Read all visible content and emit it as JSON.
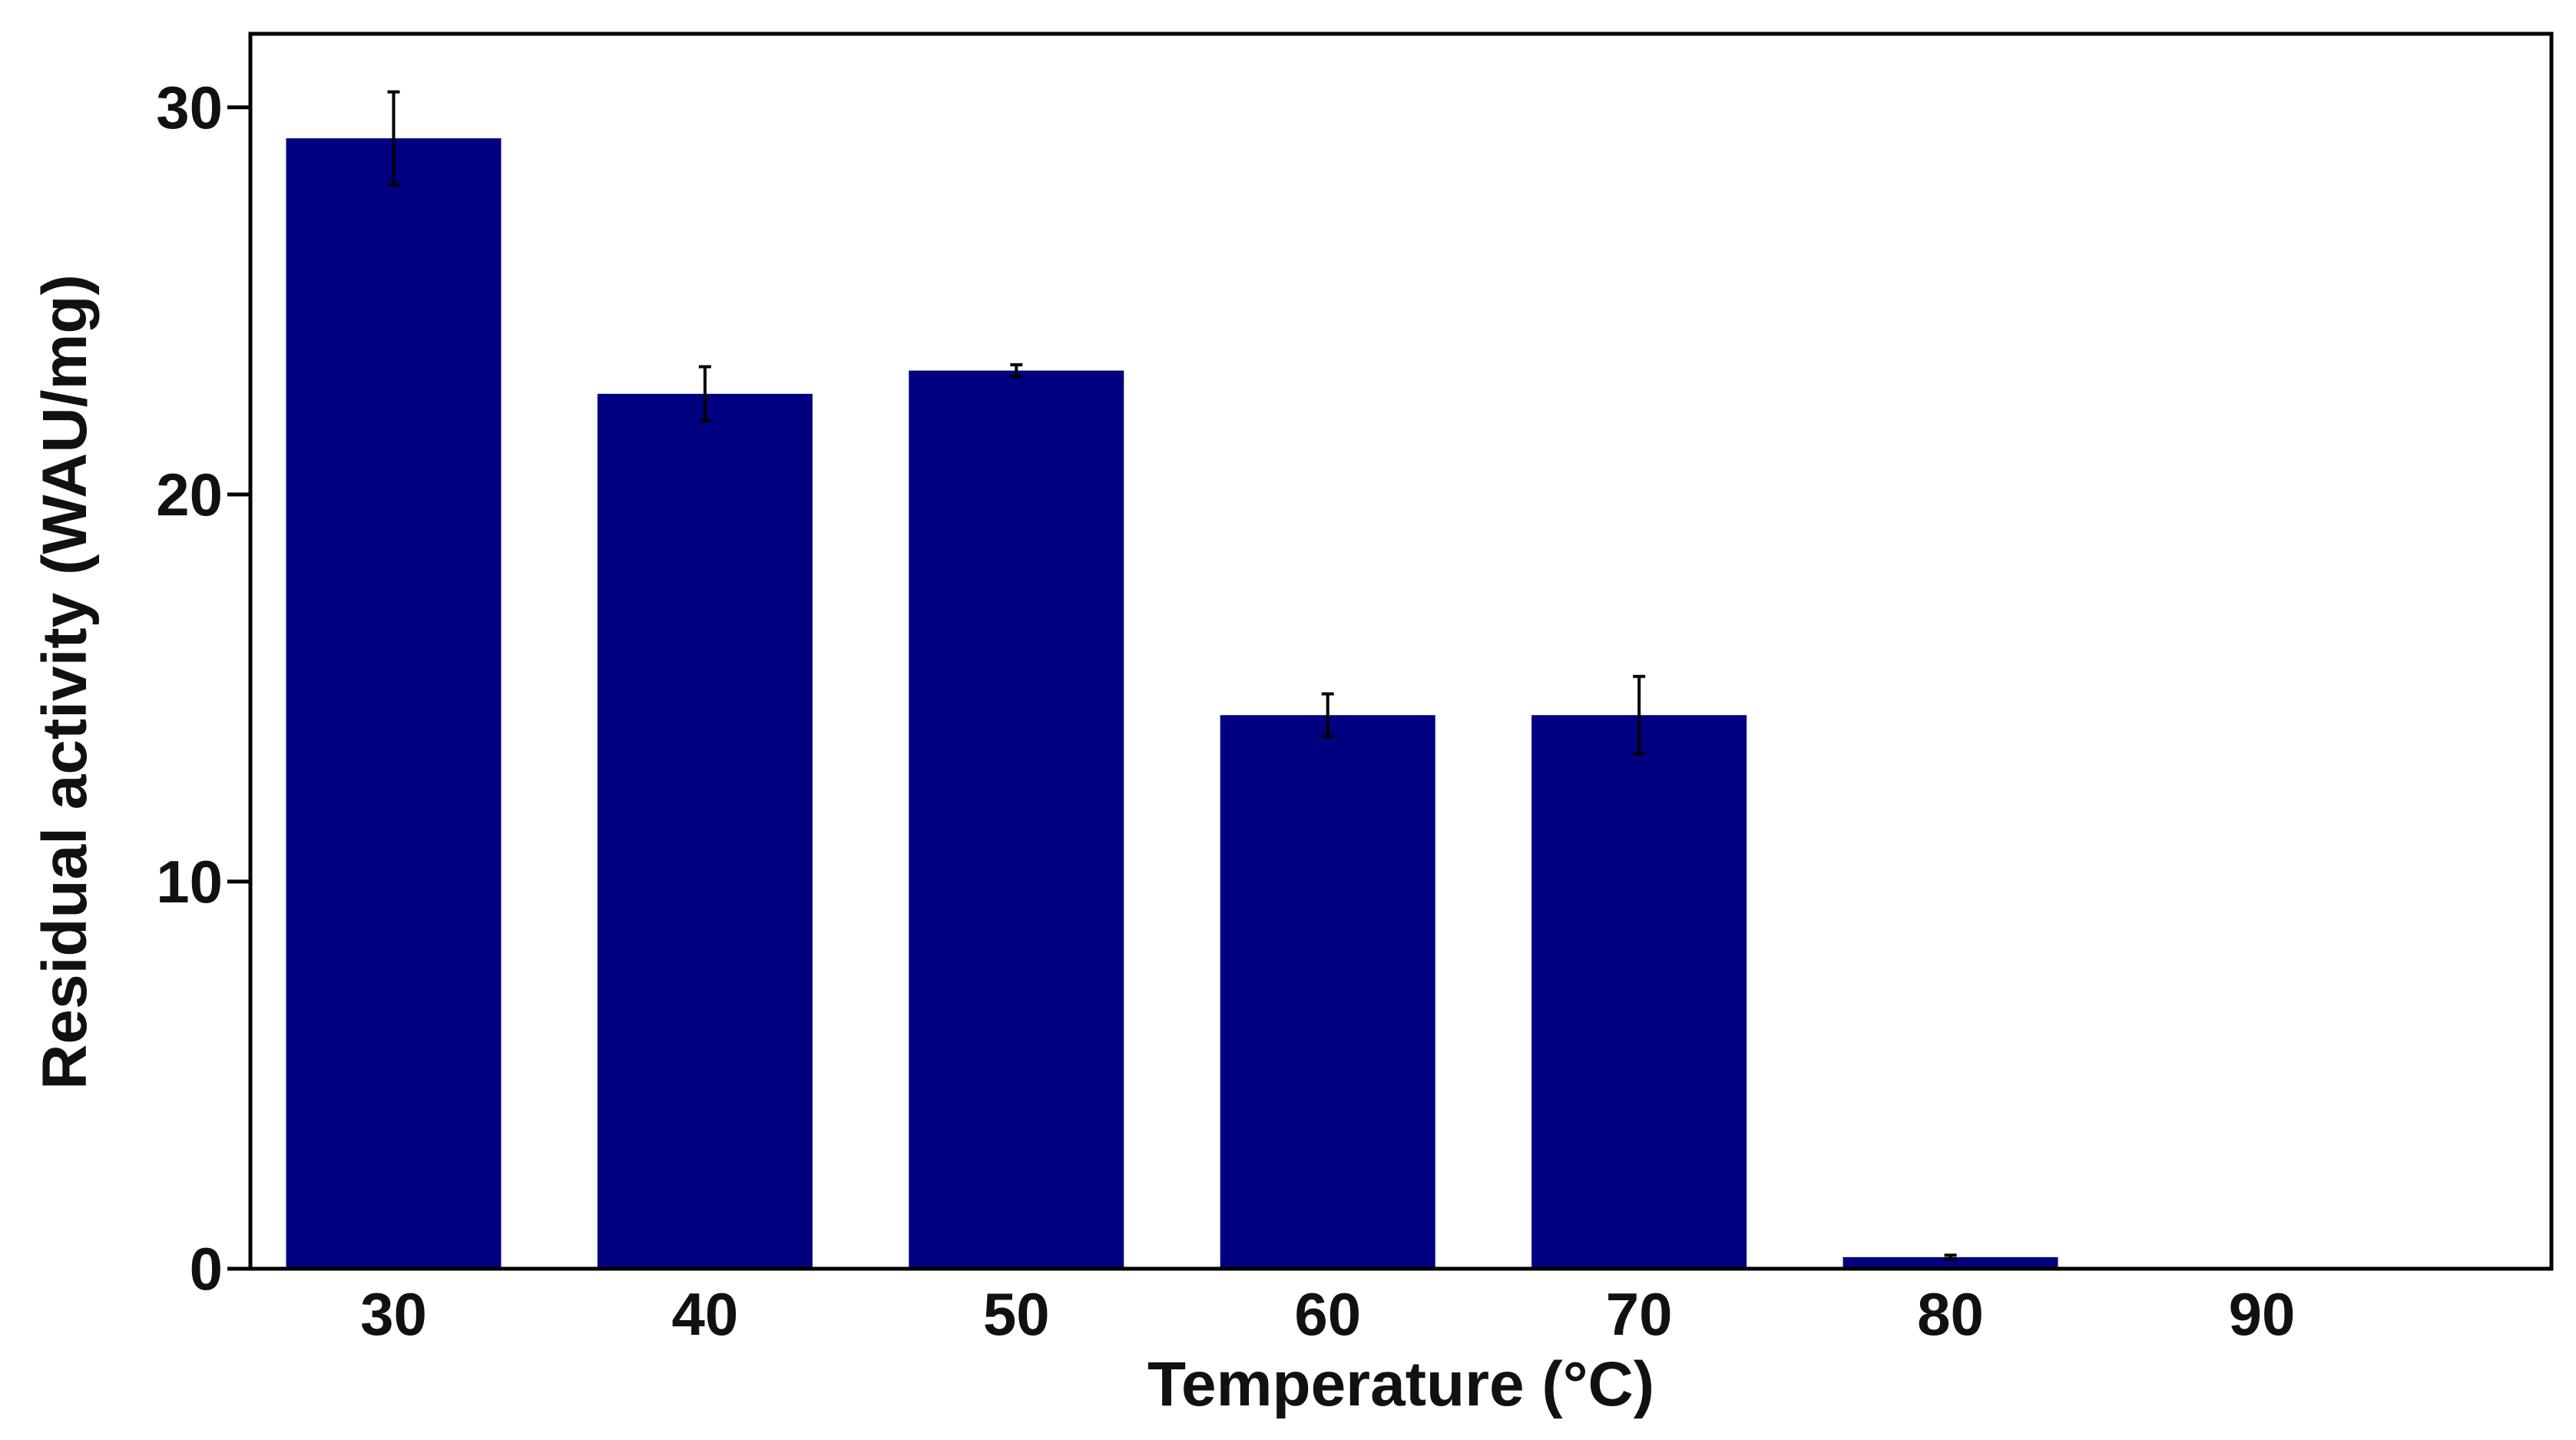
{
  "chart_data": {
    "type": "bar",
    "title": "",
    "xlabel": "Temperature (°C)",
    "ylabel": "Residual activity (WAU/mg)",
    "categories": [
      "30",
      "40",
      "50",
      "60",
      "70",
      "80",
      "90"
    ],
    "values": [
      29.2,
      22.6,
      23.2,
      14.3,
      14.3,
      0.3,
      0
    ],
    "error": [
      1.2,
      0.7,
      0.15,
      0.55,
      1.0,
      0.05,
      0
    ],
    "yticks": [
      0,
      10,
      20,
      30
    ],
    "ylim": [
      0,
      31.9
    ],
    "grid": false,
    "legend": "none",
    "bar_color": "#000080",
    "error_color": "#000000",
    "frame_color": "#000000"
  }
}
